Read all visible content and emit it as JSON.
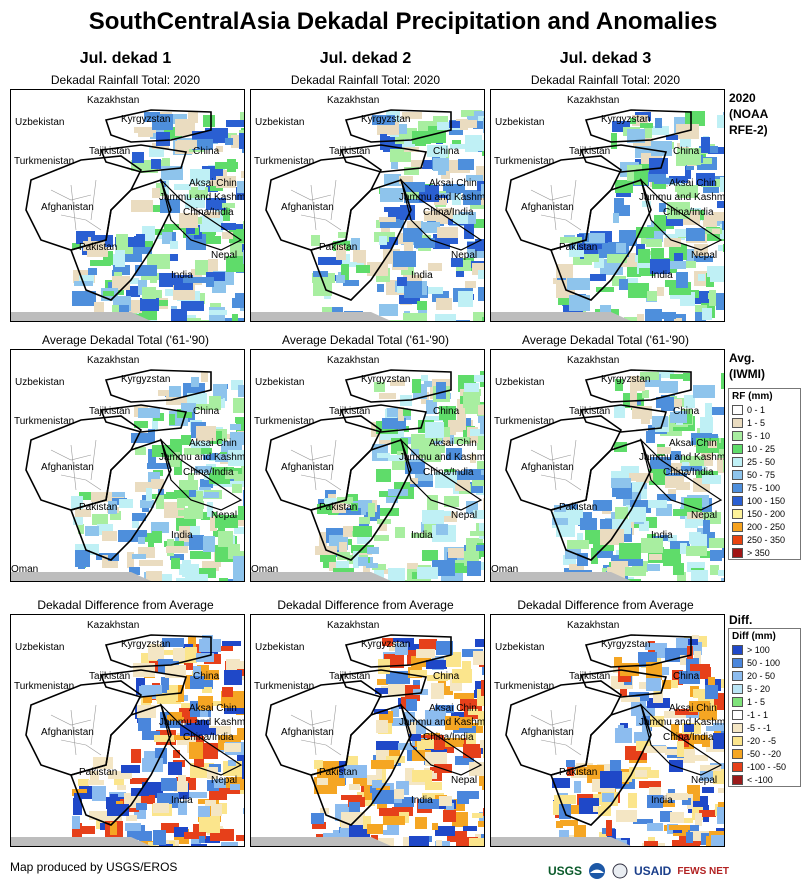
{
  "title": "SouthCentralAsia Dekadal Precipitation and Anomalies",
  "columns": [
    "Jul. dekad 1",
    "Jul. dekad 2",
    "Jul. dekad 3"
  ],
  "rows": [
    {
      "subtitle": "Dekadal Rainfall Total: 2020",
      "side": [
        "2020",
        "(NOAA",
        "RFE-2)"
      ]
    },
    {
      "subtitle": "Average Dekadal Total ('61-'90)",
      "side": [
        "Avg.",
        "(IWMI)"
      ]
    },
    {
      "subtitle": "Dekadal Difference from Average",
      "side": [
        "Diff."
      ]
    }
  ],
  "map_labels": [
    "Kazakhstan",
    "Uzbekistan",
    "Kyrgyzstan",
    "Turkmenistan",
    "Tajikistan",
    "China",
    "Aksai Chin",
    "Jammu and Kashmir",
    "China/India",
    "Afghanistan",
    "Pakistan",
    "Nepal",
    "India",
    "Oman"
  ],
  "legend_rf": {
    "title": "RF (mm)",
    "items": [
      {
        "label": "0 - 1",
        "color": "#ffffff"
      },
      {
        "label": "1 - 5",
        "color": "#eadcc0"
      },
      {
        "label": "5 - 10",
        "color": "#a8eea0"
      },
      {
        "label": "10 - 25",
        "color": "#5fdc6a"
      },
      {
        "label": "25 - 50",
        "color": "#bff0f5"
      },
      {
        "label": "50 - 75",
        "color": "#8ec4ec"
      },
      {
        "label": "75 - 100",
        "color": "#4e8fdc"
      },
      {
        "label": "100 - 150",
        "color": "#2a5fd2"
      },
      {
        "label": "150 - 200",
        "color": "#fdf29a"
      },
      {
        "label": "200 - 250",
        "color": "#f6a21e"
      },
      {
        "label": "250 - 350",
        "color": "#e8430f"
      },
      {
        "label": "> 350",
        "color": "#a01515"
      }
    ]
  },
  "legend_diff": {
    "title": "Diff (mm)",
    "items": [
      {
        "label": "> 100",
        "color": "#1f48c8"
      },
      {
        "label": "50 - 100",
        "color": "#4a86dc"
      },
      {
        "label": "20 - 50",
        "color": "#8cbcef"
      },
      {
        "label": "5 - 20",
        "color": "#b9e4f4"
      },
      {
        "label": "1 - 5",
        "color": "#7fe27a"
      },
      {
        "label": "-1 - 1",
        "color": "#ffffff"
      },
      {
        "label": "-5 - -1",
        "color": "#f4e6c4"
      },
      {
        "label": "-20 - -5",
        "color": "#fbe58c"
      },
      {
        "label": "-50 - -20",
        "color": "#f5a623"
      },
      {
        "label": "-100 - -50",
        "color": "#e6401a"
      },
      {
        "label": "< -100",
        "color": "#9b1a1a"
      }
    ]
  },
  "footer": "Map produced by USGS/EROS",
  "logos": [
    "USGS",
    "NOAA",
    "USAID",
    "FEWS NET"
  ]
}
